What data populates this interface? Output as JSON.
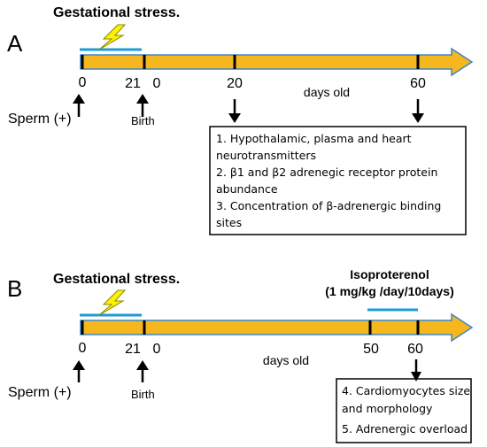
{
  "panels": [
    {
      "letter": "A",
      "header": "Gestational stress.",
      "tick_labels": [
        "0",
        "21",
        "0",
        "20",
        "60"
      ],
      "axis_label": "days old",
      "sperm_label": "Sperm (+)",
      "birth_label": "Birth",
      "box_lines": [
        "1. Hypothalamic, plasma and heart",
        "neurotransmitters",
        "2. β1 and β2 adrenegic receptor protein",
        "abundance",
        "3. Concentration of β-adrenergic binding",
        "sites"
      ]
    },
    {
      "letter": "B",
      "header": "Gestational stress.",
      "treatment_title": "Isoproterenol",
      "treatment_dose": "(1 mg/kg /day/10days)",
      "tick_labels": [
        "0",
        "21",
        "0",
        "50",
        "60"
      ],
      "axis_label": "days old",
      "sperm_label": "Sperm (+)",
      "birth_label": "Birth",
      "box_lines": [
        "4. Cardiomyocytes size",
        "and morphology",
        "5. Adrenergic overload"
      ]
    }
  ],
  "colors": {
    "timeline_fill": "#F5B61E",
    "stress_bar": "#1E9BD7",
    "lightning": "#FFF200"
  },
  "icons": [
    "lightning-icon",
    "up-arrow-icon",
    "down-arrow-icon"
  ]
}
